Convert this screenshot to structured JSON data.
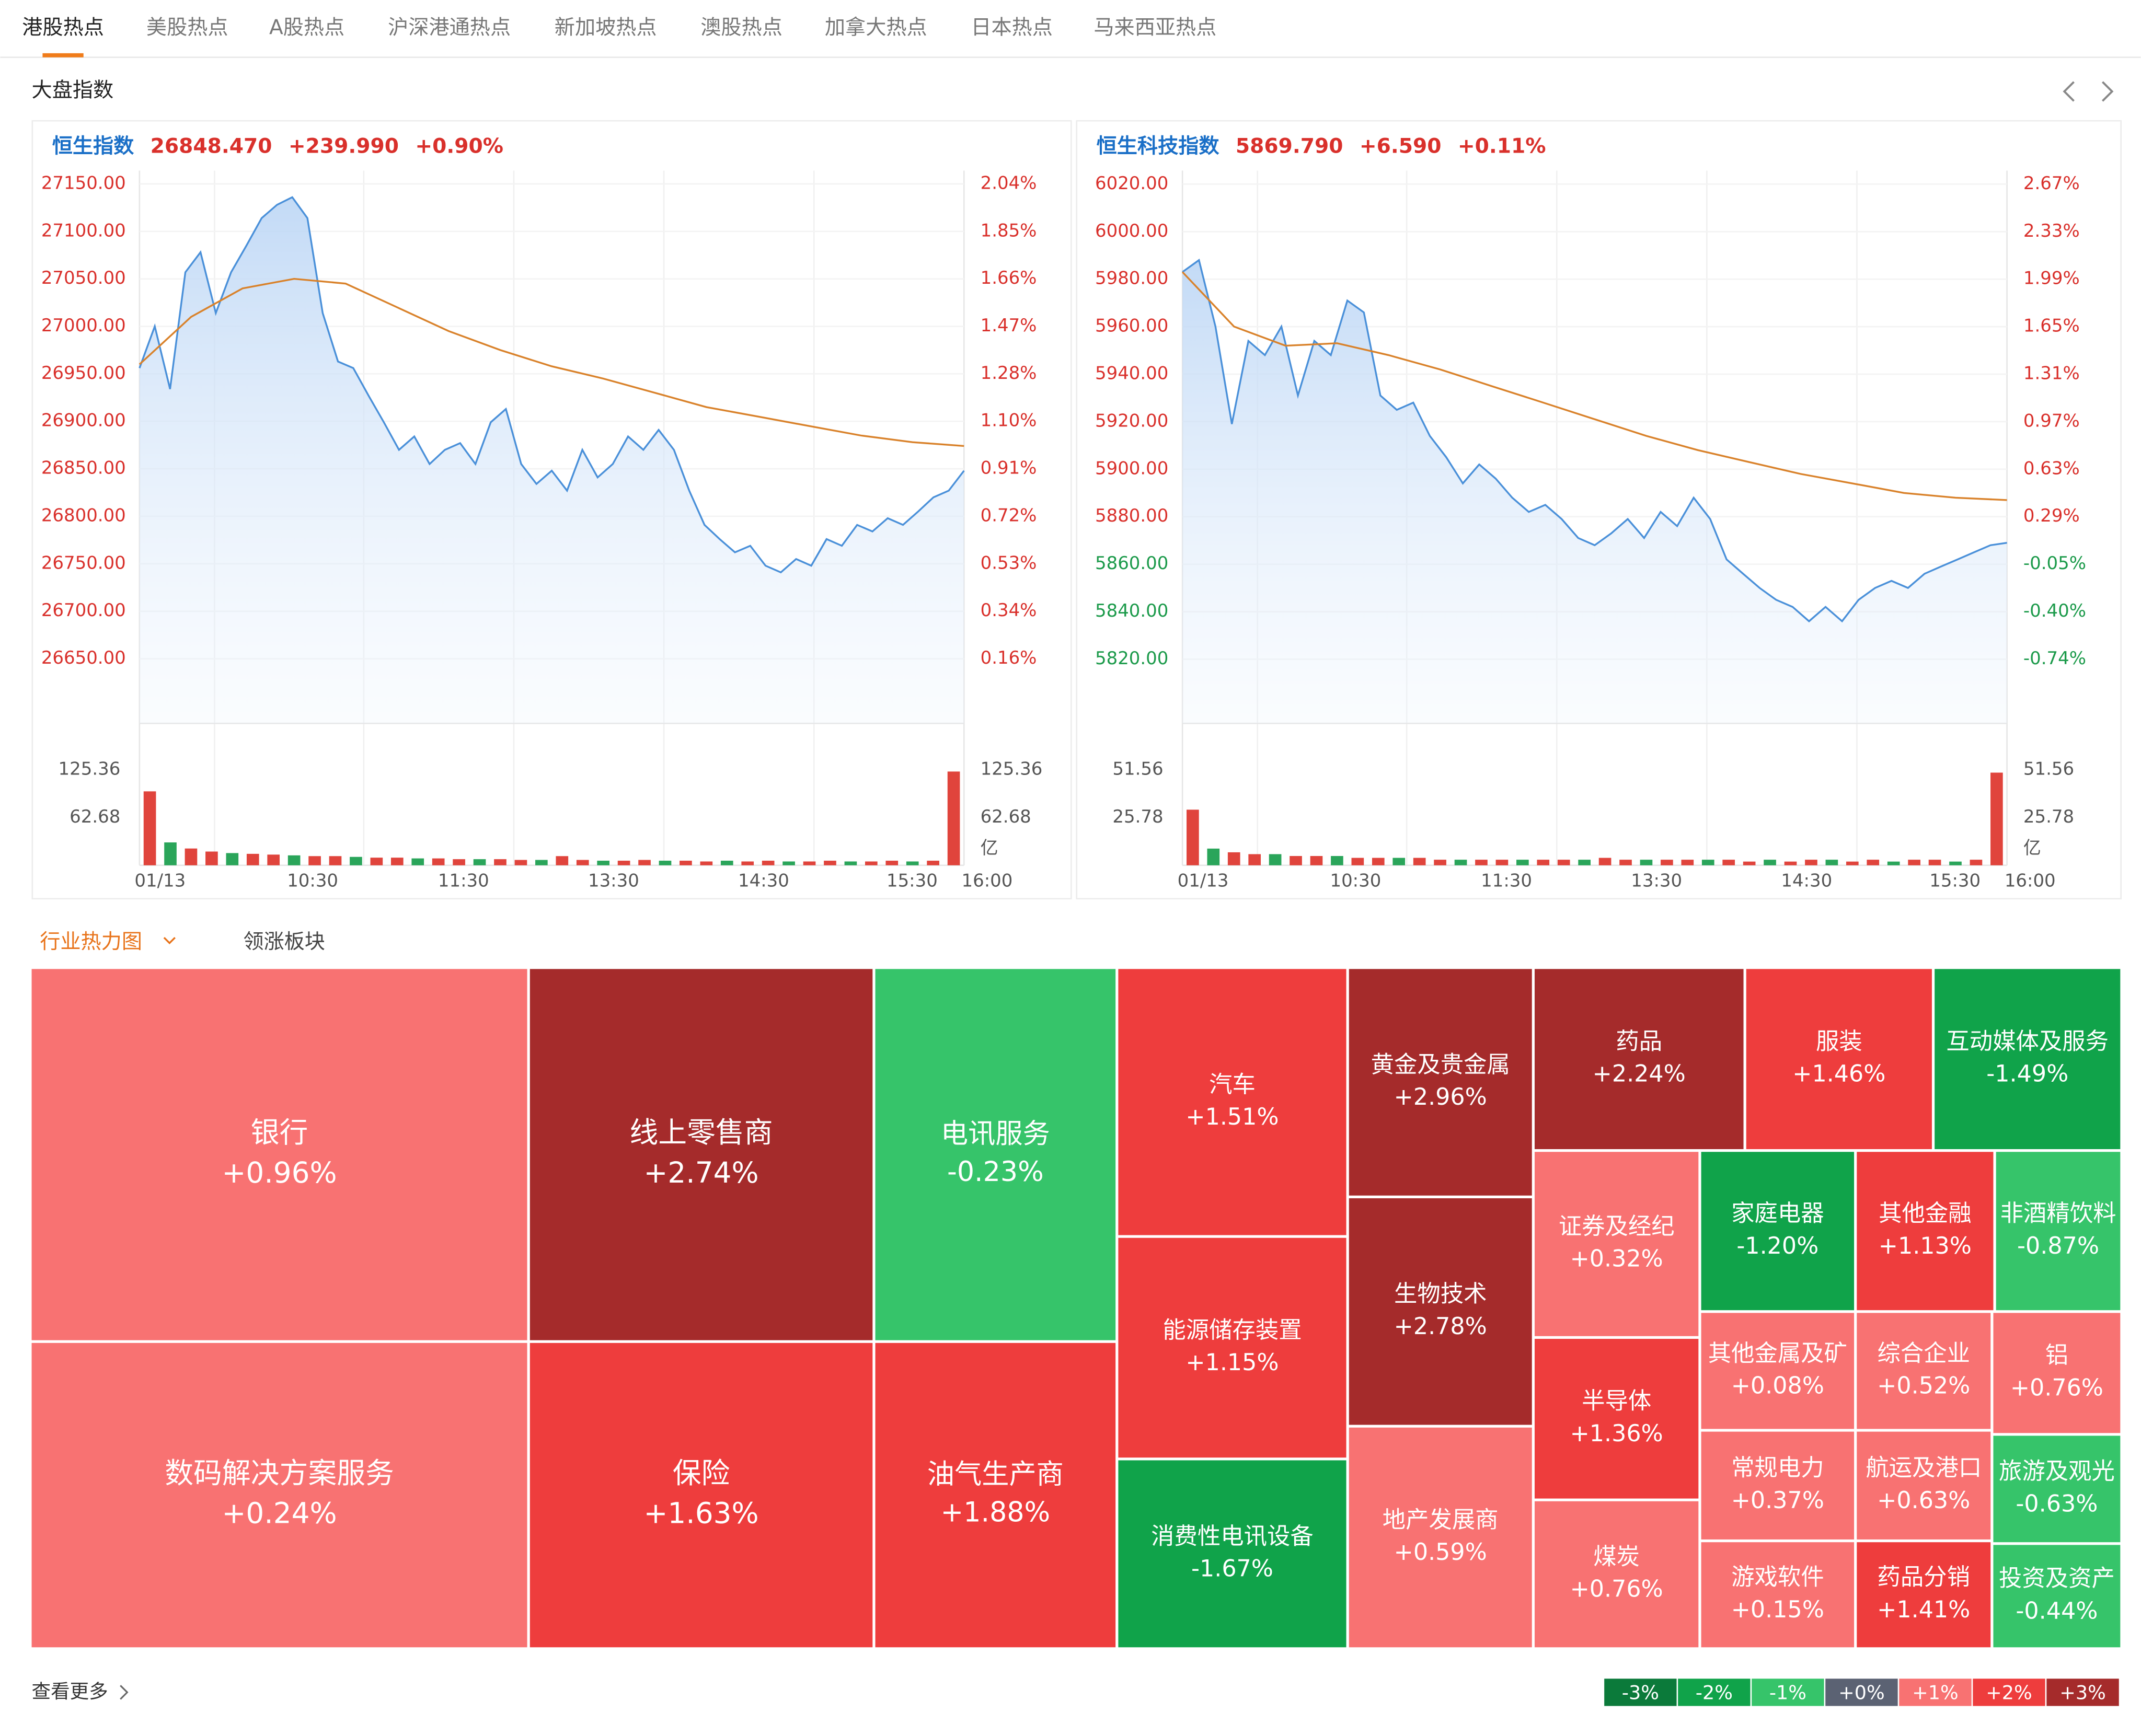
{
  "tabs": [
    "港股热点",
    "美股热点",
    "A股热点",
    "沪深港通热点",
    "新加坡热点",
    "澳股热点",
    "加拿大热点",
    "日本热点",
    "马来西亚热点"
  ],
  "active_tab": 0,
  "market_title": "大盘指数",
  "indices": [
    {
      "name": "恒生指数",
      "price": "26848.470",
      "change": "+239.990",
      "change_pct": "+0.90%",
      "chart_data": {
        "type": "line",
        "price_color": "#4a90d9",
        "average_color": "#d9822b",
        "ylim": [
          26582,
          27164
        ],
        "yticks": [
          {
            "value": 27150,
            "label": "27150.00"
          },
          {
            "value": 27100,
            "label": "27100.00"
          },
          {
            "value": 27050,
            "label": "27050.00"
          },
          {
            "value": 27000,
            "label": "27000.00"
          },
          {
            "value": 26950,
            "label": "26950.00"
          },
          {
            "value": 26900,
            "label": "26900.00"
          },
          {
            "value": 26850,
            "label": "26850.00"
          },
          {
            "value": 26800,
            "label": "26800.00"
          },
          {
            "value": 26750,
            "label": "26750.00"
          },
          {
            "value": 26700,
            "label": "26700.00"
          },
          {
            "value": 26650,
            "label": "26650.00"
          }
        ],
        "y2ticks": [
          {
            "value": 2.04,
            "label": "2.04%"
          },
          {
            "value": 1.85,
            "label": "1.85%"
          },
          {
            "value": 1.66,
            "label": "1.66%"
          },
          {
            "value": 1.47,
            "label": "1.47%"
          },
          {
            "value": 1.28,
            "label": "1.28%"
          },
          {
            "value": 1.1,
            "label": "1.10%"
          },
          {
            "value": 0.91,
            "label": "0.91%"
          },
          {
            "value": 0.72,
            "label": "0.72%"
          },
          {
            "value": 0.53,
            "label": "0.53%"
          },
          {
            "value": 0.34,
            "label": "0.34%"
          },
          {
            "value": 0.16,
            "label": "0.16%"
          }
        ],
        "price": [
          26956,
          27000,
          26934,
          27057,
          27078,
          27014,
          27057,
          27085,
          27114,
          27128,
          27136,
          27114,
          27014,
          26963,
          26956,
          26927,
          26899,
          26870,
          26884,
          26855,
          26870,
          26877,
          26855,
          26899,
          26913,
          26855,
          26834,
          26848,
          26827,
          26870,
          26841,
          26855,
          26884,
          26870,
          26891,
          26870,
          26827,
          26791,
          26776,
          26762,
          26769,
          26748,
          26741,
          26755,
          26748,
          26776,
          26769,
          26791,
          26784,
          26798,
          26791,
          26805,
          26820,
          26827,
          26848
        ],
        "average": [
          26960,
          27010,
          27040,
          27050,
          27045,
          27020,
          26995,
          26975,
          26958,
          26945,
          26930,
          26915,
          26905,
          26895,
          26885,
          26878,
          26874
        ],
        "volume_ylim": [
          0,
          125.36
        ],
        "volume_ticks": [
          125.36,
          62.68
        ],
        "volume_unit": "亿",
        "volume": [
          97,
          30,
          22,
          18,
          16,
          15,
          14,
          13,
          12,
          12,
          11,
          10,
          10,
          9,
          9,
          8,
          8,
          8,
          7,
          7,
          12,
          7,
          6,
          6,
          7,
          6,
          6,
          5,
          6,
          5,
          6,
          5,
          5,
          6,
          5,
          5,
          6,
          5,
          6,
          123
        ],
        "x_labels": [
          "01/13",
          "10:30",
          "11:30",
          "13:30",
          "14:30",
          "15:30",
          "16:00"
        ]
      }
    },
    {
      "name": "恒生科技指数",
      "price": "5869.790",
      "change": "+6.590",
      "change_pct": "+0.11%",
      "chart_data": {
        "type": "line",
        "price_color": "#4a90d9",
        "average_color": "#d9822b",
        "ylim": [
          5793,
          6025.7
        ],
        "yticks": [
          {
            "value": 6020,
            "label": "6020.00"
          },
          {
            "value": 6000,
            "label": "6000.00"
          },
          {
            "value": 5980,
            "label": "5980.00"
          },
          {
            "value": 5960,
            "label": "5960.00"
          },
          {
            "value": 5940,
            "label": "5940.00"
          },
          {
            "value": 5920,
            "label": "5920.00"
          },
          {
            "value": 5900,
            "label": "5900.00"
          },
          {
            "value": 5880,
            "label": "5880.00"
          },
          {
            "value": 5860,
            "label": "5860.00"
          },
          {
            "value": 5840,
            "label": "5840.00"
          },
          {
            "value": 5820,
            "label": "5820.00"
          }
        ],
        "y2ticks": [
          {
            "value": 2.67,
            "label": "2.67%"
          },
          {
            "value": 2.33,
            "label": "2.33%"
          },
          {
            "value": 1.99,
            "label": "1.99%"
          },
          {
            "value": 1.65,
            "label": "1.65%"
          },
          {
            "value": 1.31,
            "label": "1.31%"
          },
          {
            "value": 0.97,
            "label": "0.97%"
          },
          {
            "value": 0.63,
            "label": "0.63%"
          },
          {
            "value": 0.29,
            "label": "0.29%"
          },
          {
            "value": -0.05,
            "label": "-0.05%"
          },
          {
            "value": -0.4,
            "label": "-0.40%"
          },
          {
            "value": -0.74,
            "label": "-0.74%"
          }
        ],
        "price": [
          5983,
          5988,
          5960,
          5919,
          5954,
          5948,
          5960,
          5931,
          5954,
          5948,
          5971,
          5966,
          5931,
          5925,
          5928,
          5914,
          5905,
          5894,
          5902,
          5896,
          5888,
          5882,
          5885,
          5879,
          5871,
          5868,
          5873,
          5879,
          5871,
          5882,
          5876,
          5888,
          5879,
          5862,
          5856,
          5850,
          5845,
          5842,
          5836,
          5842,
          5836,
          5845,
          5850,
          5853,
          5850,
          5856,
          5859,
          5862,
          5865,
          5868,
          5869
        ],
        "average": [
          5983,
          5960,
          5952,
          5953,
          5948,
          5942,
          5935,
          5928,
          5921,
          5914,
          5908,
          5903,
          5898,
          5894,
          5890,
          5888,
          5887
        ],
        "volume_ylim": [
          0,
          51.56
        ],
        "volume_ticks": [
          51.56,
          25.78
        ],
        "volume_unit": "亿",
        "volume": [
          30,
          9,
          7,
          6,
          6,
          5,
          5,
          5,
          4,
          4,
          4,
          4,
          3,
          3,
          3,
          3,
          3,
          3,
          3,
          3,
          4,
          3,
          3,
          3,
          3,
          3,
          3,
          2,
          3,
          2,
          3,
          3,
          2,
          3,
          2,
          3,
          3,
          2,
          3,
          50
        ],
        "x_labels": [
          "01/13",
          "10:30",
          "11:30",
          "13:30",
          "14:30",
          "15:30",
          "16:00"
        ]
      }
    }
  ],
  "heatmap": {
    "tabs": [
      "行业热力图",
      "领涨板块"
    ],
    "tiles": [
      {
        "name": "银行",
        "value": 0.96,
        "label": "+0.96%"
      },
      {
        "name": "数码解决方案服务",
        "value": 0.24,
        "label": "+0.24%"
      },
      {
        "name": "线上零售商",
        "value": 2.74,
        "label": "+2.74%"
      },
      {
        "name": "保险",
        "value": 1.63,
        "label": "+1.63%"
      },
      {
        "name": "电讯服务",
        "value": -0.23,
        "label": "-0.23%"
      },
      {
        "name": "油气生产商",
        "value": 1.88,
        "label": "+1.88%"
      },
      {
        "name": "汽车",
        "value": 1.51,
        "label": "+1.51%"
      },
      {
        "name": "能源储存装置",
        "value": 1.15,
        "label": "+1.15%"
      },
      {
        "name": "消费性电讯设备",
        "value": -1.67,
        "label": "-1.67%"
      },
      {
        "name": "黄金及贵金属",
        "value": 2.96,
        "label": "+2.96%"
      },
      {
        "name": "生物技术",
        "value": 2.78,
        "label": "+2.78%"
      },
      {
        "name": "地产发展商",
        "value": 0.59,
        "label": "+0.59%"
      },
      {
        "name": "药品",
        "value": 2.24,
        "label": "+2.24%"
      },
      {
        "name": "服装",
        "value": 1.46,
        "label": "+1.46%"
      },
      {
        "name": "互动媒体及服务",
        "value": -1.49,
        "label": "-1.49%"
      },
      {
        "name": "证券及经纪",
        "value": 0.32,
        "label": "+0.32%"
      },
      {
        "name": "半导体",
        "value": 1.36,
        "label": "+1.36%"
      },
      {
        "name": "煤炭",
        "value": 0.76,
        "label": "+0.76%"
      },
      {
        "name": "家庭电器",
        "value": -1.2,
        "label": "-1.20%"
      },
      {
        "name": "其他金融",
        "value": 1.13,
        "label": "+1.13%"
      },
      {
        "name": "非酒精饮料",
        "value": -0.87,
        "label": "-0.87%"
      },
      {
        "name": "其他金属及矿",
        "value": 0.08,
        "label": "+0.08%"
      },
      {
        "name": "综合企业",
        "value": 0.52,
        "label": "+0.52%"
      },
      {
        "name": "铝",
        "value": 0.76,
        "label": "+0.76%"
      },
      {
        "name": "常规电力",
        "value": 0.37,
        "label": "+0.37%"
      },
      {
        "name": "航运及港口",
        "value": 0.63,
        "label": "+0.63%"
      },
      {
        "name": "旅游及观光",
        "value": -0.63,
        "label": "-0.63%"
      },
      {
        "name": "游戏软件",
        "value": 0.15,
        "label": "+0.15%"
      },
      {
        "name": "药品分销",
        "value": 1.41,
        "label": "+1.41%"
      },
      {
        "name": "投资及资产",
        "value": -0.44,
        "label": "-0.44%"
      }
    ],
    "legend": [
      {
        "label": "-3%",
        "color": "#0b7a3a"
      },
      {
        "label": "-2%",
        "color": "#10a34a"
      },
      {
        "label": "-1%",
        "color": "#36c46a"
      },
      {
        "label": "+0%",
        "color": "#5b6273"
      },
      {
        "label": "+1%",
        "color": "#f87272"
      },
      {
        "label": "+2%",
        "color": "#ee3d3d"
      },
      {
        "label": "+3%",
        "color": "#a52b2b"
      }
    ],
    "more": "查看更多"
  }
}
